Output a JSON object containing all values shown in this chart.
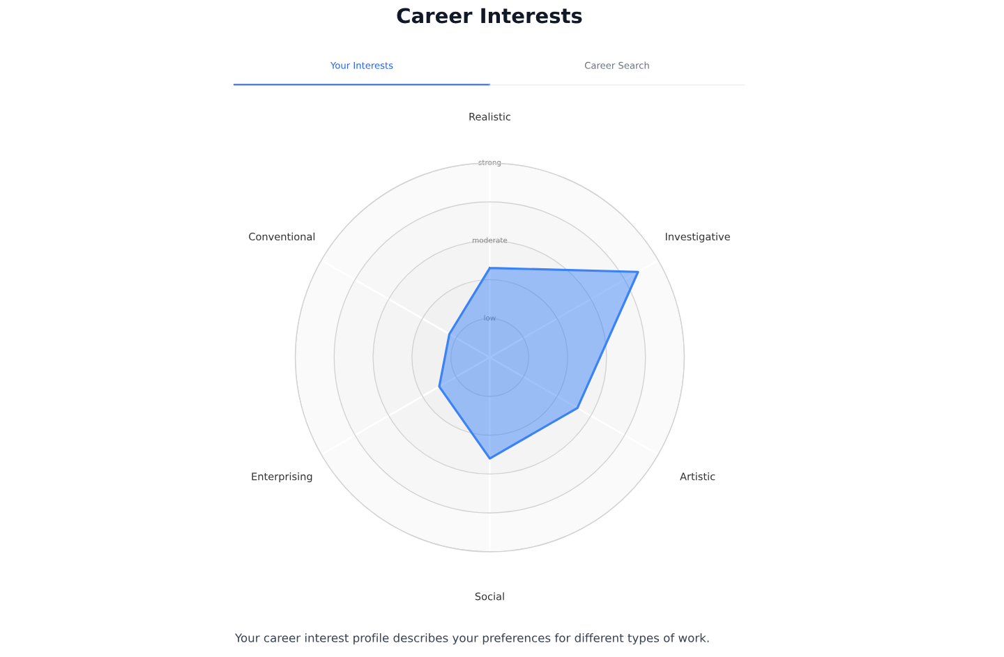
{
  "chart_data": {
    "type": "radar",
    "title": "Career Interests",
    "categories": [
      "Realistic",
      "Investigative",
      "Artistic",
      "Social",
      "Enterprising",
      "Conventional"
    ],
    "series": [
      {
        "color": "#3b82f6",
        "values": [
          2.3,
          4.4,
          2.6,
          2.6,
          1.5,
          1.2
        ]
      }
    ],
    "ylim": [
      0,
      5
    ],
    "yticks": [
      {
        "value": 1,
        "label": "low"
      },
      {
        "value": 3,
        "label": "moderate"
      },
      {
        "value": 5,
        "label": "strong"
      }
    ],
    "grid": true,
    "annotations": [
      "Your Interests",
      "Career Search",
      "Your career interest profile describes your preferences for different types of work."
    ]
  }
}
